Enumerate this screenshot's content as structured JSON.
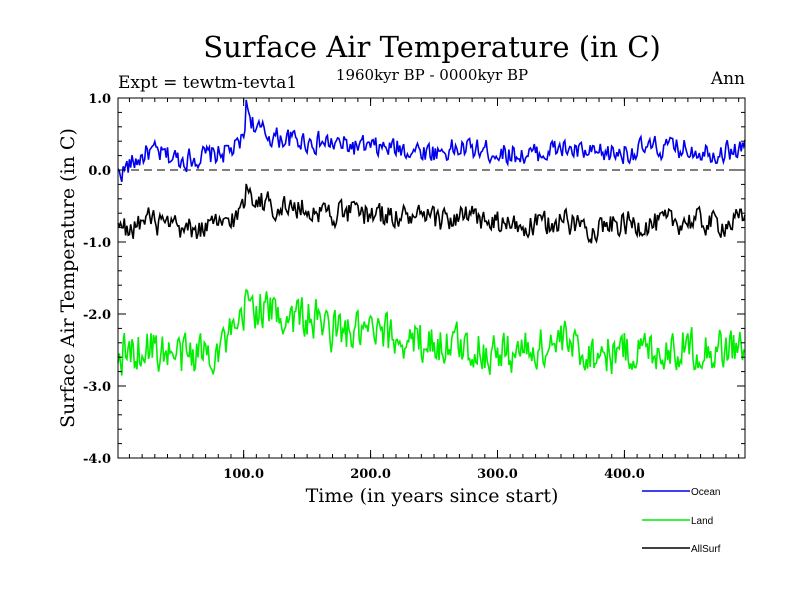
{
  "chart_data": {
    "type": "line",
    "title": "Surface Air Temperature (in C)",
    "subtitle": "1960kyr BP - 0000kyr BP",
    "left_note": "Expt = tewtm-tevta1",
    "right_note": "Ann",
    "xlabel": "Time (in years since start)",
    "ylabel": "Surface Air Temperature (in C)",
    "xlim": [
      1,
      495
    ],
    "ylim": [
      -4.0,
      1.0
    ],
    "xticks": [
      100,
      200,
      300,
      400
    ],
    "xtick_labels": [
      "100.0",
      "200.0",
      "300.0",
      "400.0"
    ],
    "yticks": [
      1.0,
      0.0,
      -1.0,
      -2.0,
      -3.0,
      -4.0
    ],
    "ytick_labels": [
      "1.0",
      "0.0",
      "-1.0",
      "-2.0",
      "-3.0",
      "-4.0"
    ],
    "reference_line": 0.0,
    "legend": [
      "Ocean",
      "Land",
      "AllSurf"
    ],
    "series": [
      {
        "name": "Ocean",
        "color": "#0000ee",
        "x": [
          1,
          25,
          50,
          75,
          95,
          100,
          102,
          110,
          125,
          150,
          175,
          200,
          225,
          250,
          275,
          300,
          325,
          350,
          375,
          400,
          425,
          450,
          475,
          495
        ],
        "values": [
          -0.05,
          0.25,
          0.15,
          0.2,
          0.3,
          0.45,
          0.9,
          0.55,
          0.45,
          0.4,
          0.35,
          0.3,
          0.3,
          0.25,
          0.3,
          0.25,
          0.2,
          0.3,
          0.2,
          0.25,
          0.3,
          0.3,
          0.25,
          0.3
        ]
      },
      {
        "name": "Land",
        "color": "#00ee00",
        "x": [
          1,
          25,
          50,
          75,
          95,
          100,
          102,
          110,
          125,
          150,
          175,
          200,
          225,
          250,
          275,
          300,
          325,
          350,
          375,
          400,
          425,
          450,
          475,
          495
        ],
        "values": [
          -2.6,
          -2.45,
          -2.6,
          -2.5,
          -2.3,
          -2.1,
          -1.8,
          -1.9,
          -2.0,
          -2.05,
          -2.25,
          -2.3,
          -2.35,
          -2.4,
          -2.45,
          -2.55,
          -2.5,
          -2.4,
          -2.55,
          -2.5,
          -2.5,
          -2.45,
          -2.5,
          -2.45
        ]
      },
      {
        "name": "AllSurf",
        "color": "#000000",
        "x": [
          1,
          25,
          50,
          75,
          95,
          100,
          102,
          110,
          125,
          150,
          175,
          200,
          225,
          250,
          275,
          300,
          325,
          350,
          375,
          400,
          425,
          450,
          475,
          495
        ],
        "values": [
          -0.85,
          -0.7,
          -0.85,
          -0.8,
          -0.65,
          -0.5,
          -0.2,
          -0.4,
          -0.5,
          -0.55,
          -0.6,
          -0.6,
          -0.65,
          -0.7,
          -0.65,
          -0.75,
          -0.8,
          -0.7,
          -0.8,
          -0.75,
          -0.75,
          -0.7,
          -0.75,
          -0.7
        ]
      }
    ]
  }
}
